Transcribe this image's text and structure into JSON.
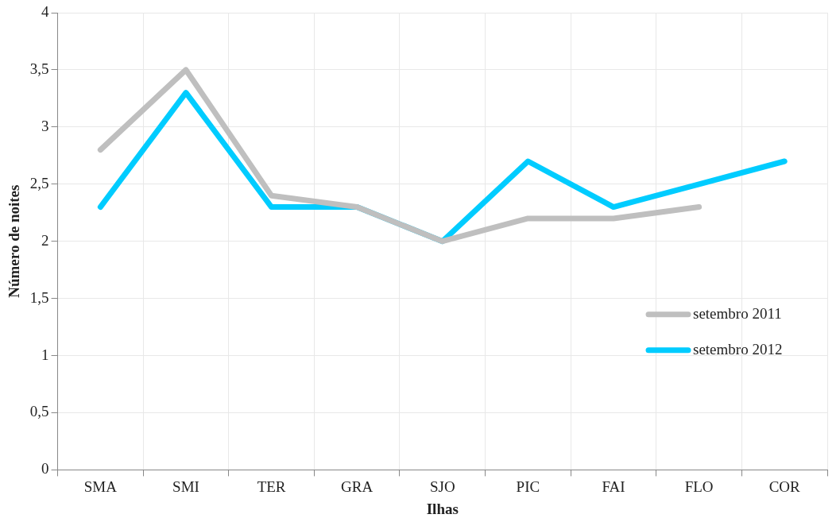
{
  "chart_data": {
    "type": "line",
    "xlabel": "Ilhas",
    "ylabel": "Número de noites",
    "categories": [
      "SMA",
      "SMI",
      "TER",
      "GRA",
      "SJO",
      "PIC",
      "FAI",
      "FLO",
      "COR"
    ],
    "series": [
      {
        "name": "setembro 2011",
        "color": "#bfbfbf",
        "values": [
          2.8,
          3.5,
          2.4,
          2.3,
          2.0,
          2.2,
          2.2,
          2.3,
          null
        ]
      },
      {
        "name": "setembro 2012",
        "color": "#00ccff",
        "values": [
          2.3,
          3.3,
          2.3,
          2.3,
          2.0,
          2.7,
          2.3,
          2.5,
          2.7
        ]
      }
    ],
    "ylim": [
      0,
      4
    ],
    "yticks": [
      {
        "value": 0,
        "label": "0"
      },
      {
        "value": 0.5,
        "label": "0,5"
      },
      {
        "value": 1,
        "label": "1"
      },
      {
        "value": 1.5,
        "label": "1,5"
      },
      {
        "value": 2,
        "label": "2"
      },
      {
        "value": 2.5,
        "label": "2,5"
      },
      {
        "value": 3,
        "label": "3"
      },
      {
        "value": 3.5,
        "label": "3,5"
      },
      {
        "value": 4,
        "label": "4"
      }
    ],
    "grid": true,
    "legend": "right",
    "marker": "none",
    "line_style": "solid"
  }
}
